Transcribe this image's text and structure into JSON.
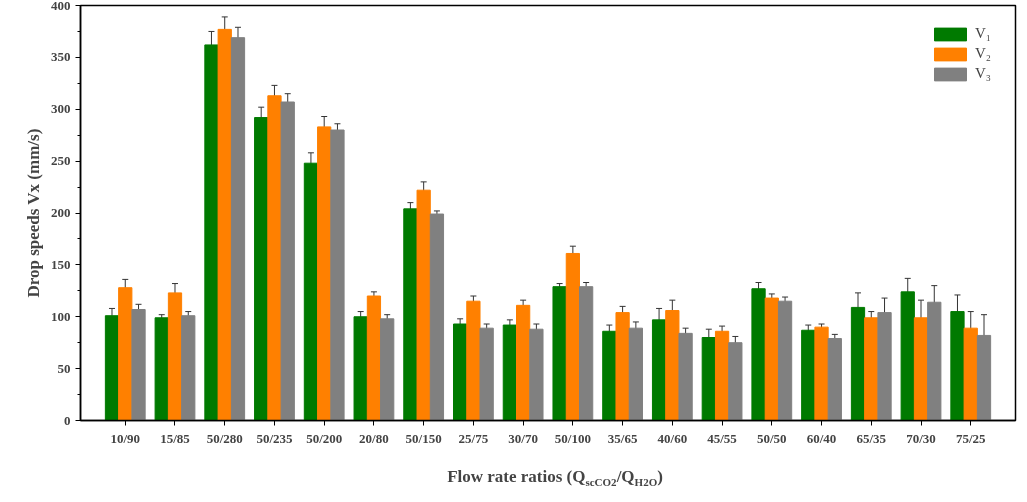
{
  "chart_data": {
    "type": "bar",
    "xlabel": "Flow rate ratios (Q$_{scCO2}$/Q$_{H2O}$)",
    "ylabel": "Drop speeds Vx (mm/s)",
    "categories": [
      "10/90",
      "15/85",
      "50/280",
      "50/235",
      "50/200",
      "20/80",
      "50/150",
      "25/75",
      "30/70",
      "50/100",
      "35/65",
      "40/60",
      "45/55",
      "50/50",
      "60/40",
      "65/35",
      "70/30",
      "75/25"
    ],
    "series": [
      {
        "name": "V₁",
        "color": "#007a00",
        "values": [
          101,
          99,
          362,
          292,
          248,
          100,
          204,
          93,
          92,
          129,
          86,
          97,
          80,
          127,
          87,
          109,
          124,
          105
        ],
        "errors": [
          7,
          3,
          13,
          10,
          10,
          5,
          6,
          5,
          5,
          3,
          6,
          11,
          8,
          6,
          5,
          14,
          13,
          16
        ]
      },
      {
        "name": "V₂",
        "color": "#ff8000",
        "values": [
          128,
          123,
          377,
          313,
          283,
          120,
          222,
          115,
          111,
          161,
          104,
          106,
          86,
          118,
          90,
          99,
          99,
          89
        ],
        "errors": [
          8,
          9,
          12,
          10,
          10,
          4,
          8,
          5,
          5,
          7,
          6,
          10,
          5,
          4,
          3,
          6,
          17,
          16
        ]
      },
      {
        "name": "V₃",
        "color": "#808080",
        "values": [
          107,
          101,
          369,
          307,
          280,
          98,
          199,
          89,
          88,
          129,
          89,
          84,
          75,
          115,
          79,
          104,
          114,
          82
        ],
        "errors": [
          5,
          4,
          10,
          8,
          6,
          4,
          3,
          4,
          5,
          4,
          6,
          5,
          6,
          4,
          4,
          14,
          16,
          20
        ]
      }
    ],
    "ylim": [
      0,
      400
    ],
    "yticks": [
      0,
      50,
      100,
      150,
      200,
      250,
      300,
      350,
      400
    ],
    "grid": false,
    "legend": "top right"
  }
}
